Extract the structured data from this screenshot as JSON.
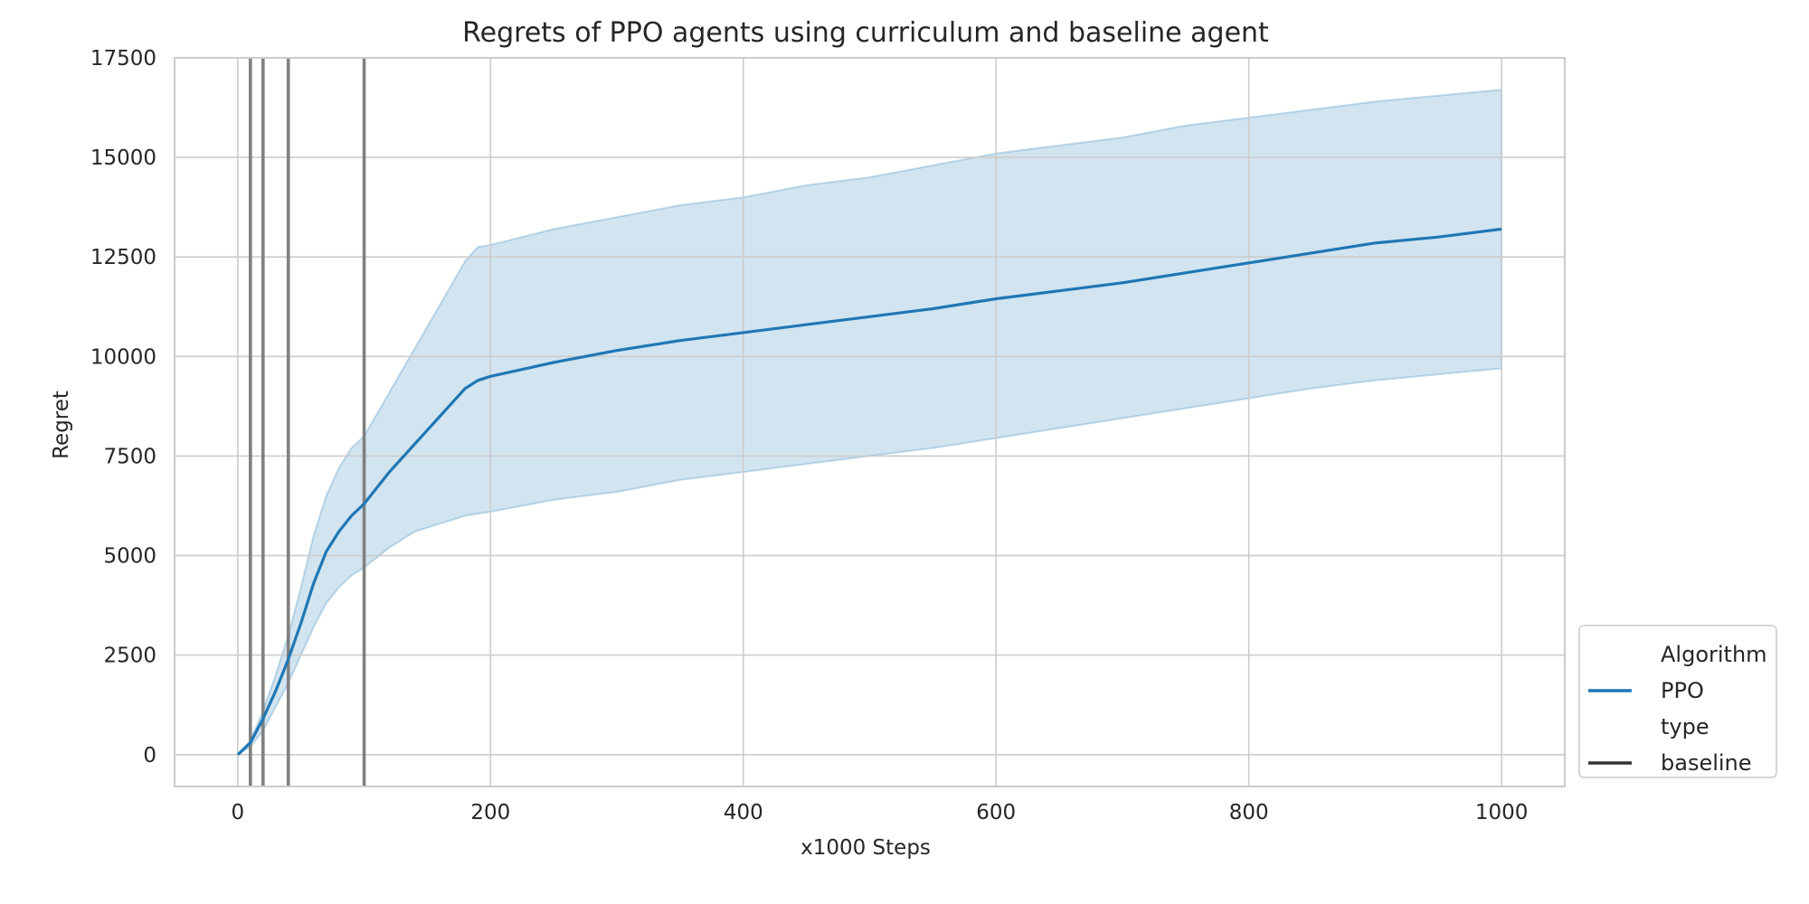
{
  "chart_data": {
    "type": "line",
    "title": "Regrets of PPO agents using curriculum and baseline agent",
    "xlabel": "x1000 Steps",
    "ylabel": "Regret",
    "xlim": [
      -50,
      1050
    ],
    "ylim": [
      -800,
      17500
    ],
    "xticks": [
      0,
      200,
      400,
      600,
      800,
      1000
    ],
    "yticks": [
      0,
      2500,
      5000,
      7500,
      10000,
      12500,
      15000,
      17500
    ],
    "grid": true,
    "legend_position": "lower-right-outside",
    "legend": [
      {
        "label": "Algorithm",
        "kind": "header"
      },
      {
        "label": "PPO",
        "kind": "line",
        "color": "#1f77b4"
      },
      {
        "label": "type",
        "kind": "header"
      },
      {
        "label": "baseline",
        "kind": "line",
        "color": "#333333"
      }
    ],
    "series": [
      {
        "name": "PPO",
        "color": "#1f77b4",
        "x": [
          0,
          10,
          20,
          30,
          40,
          50,
          60,
          70,
          80,
          90,
          100,
          120,
          140,
          160,
          180,
          190,
          200,
          250,
          300,
          350,
          400,
          450,
          500,
          550,
          600,
          650,
          700,
          750,
          800,
          850,
          900,
          950,
          1000
        ],
        "y": [
          0,
          300,
          900,
          1600,
          2400,
          3300,
          4300,
          5100,
          5600,
          6000,
          6300,
          7100,
          7800,
          8500,
          9200,
          9400,
          9500,
          9850,
          10150,
          10400,
          10600,
          10800,
          11000,
          11200,
          11450,
          11650,
          11850,
          12100,
          12350,
          12600,
          12850,
          13000,
          13200
        ],
        "lower": [
          0,
          200,
          600,
          1200,
          1800,
          2500,
          3200,
          3800,
          4200,
          4500,
          4700,
          5200,
          5600,
          5800,
          6000,
          6050,
          6100,
          6400,
          6600,
          6900,
          7100,
          7300,
          7500,
          7700,
          7950,
          8200,
          8450,
          8700,
          8950,
          9200,
          9400,
          9550,
          9700
        ],
        "upper": [
          0,
          350,
          1100,
          2000,
          3000,
          4200,
          5500,
          6500,
          7200,
          7700,
          8000,
          9100,
          10200,
          11300,
          12400,
          12750,
          12800,
          13200,
          13500,
          13800,
          14000,
          14300,
          14500,
          14800,
          15100,
          15300,
          15500,
          15800,
          16000,
          16200,
          16400,
          16550,
          16700
        ]
      }
    ],
    "vlines": {
      "name": "baseline",
      "color": "#808080",
      "x": [
        10,
        20,
        40,
        100
      ]
    }
  }
}
